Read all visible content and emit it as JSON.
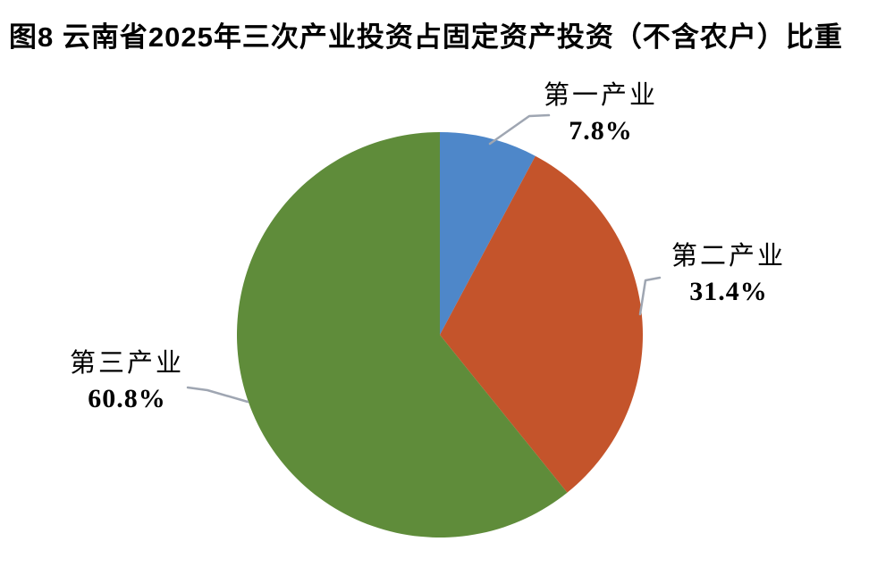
{
  "title": "图8  云南省2025年三次产业投资占固定资产投资（不含农户）比重",
  "chart_data": {
    "type": "pie",
    "title": "图8  云南省2025年三次产业投资占固定资产投资（不含农户）比重",
    "categories": [
      "第一产业",
      "第二产业",
      "第三产业"
    ],
    "values": [
      7.8,
      31.4,
      60.8
    ],
    "value_labels": [
      "7.8%",
      "31.4%",
      "60.8%"
    ],
    "unit": "%",
    "colors": [
      "#4e87c9",
      "#c4542b",
      "#5f8c3a"
    ],
    "leader_line_color": "#9fa6b2",
    "start_angle_deg": 0,
    "direction": "clockwise",
    "legend": "none",
    "data_label_style": "category-name-and-percent-outside-with-leader-lines"
  }
}
